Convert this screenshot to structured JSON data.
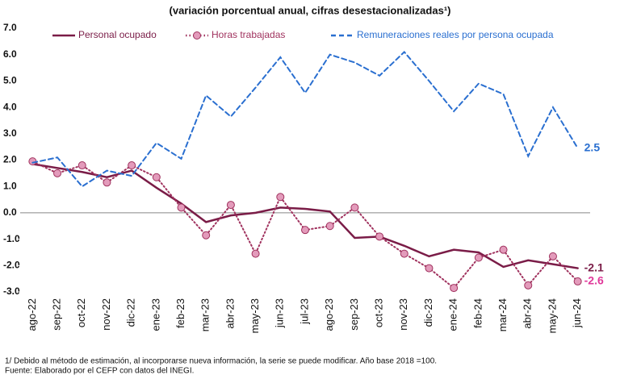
{
  "chart_data": {
    "type": "line",
    "subtitle": "(variación porcentual anual, cifras desestacionalizadas¹)",
    "categories": [
      "ago-22",
      "sep-22",
      "oct-22",
      "nov-22",
      "dic-22",
      "ene-23",
      "feb-23",
      "mar-23",
      "abr-23",
      "may-23",
      "jun-23",
      "jul-23",
      "ago-23",
      "sep-23",
      "oct-23",
      "nov-23",
      "dic-23",
      "ene-24",
      "feb-24",
      "mar-24",
      "abr-24",
      "may-24",
      "jun-24"
    ],
    "series": [
      {
        "name": "Personal ocupado",
        "color": "#7a1c47",
        "style": "solid",
        "values": [
          1.85,
          1.7,
          1.55,
          1.35,
          1.6,
          0.95,
          0.35,
          -0.35,
          -0.1,
          0.0,
          0.2,
          0.15,
          0.05,
          -0.95,
          -0.9,
          -1.25,
          -1.65,
          -1.4,
          -1.5,
          -2.05,
          -1.8,
          -1.95,
          -2.1
        ],
        "value_labels": [
          null,
          null,
          null,
          null,
          null,
          null,
          null,
          null,
          null,
          null,
          null,
          null,
          null,
          null,
          null,
          null,
          null,
          null,
          null,
          null,
          null,
          null,
          "-2.1"
        ]
      },
      {
        "name": "Horas trabajadas",
        "color": "#a0325e",
        "style": "dotted",
        "marker_color": "#e39bbb",
        "label_color": "#e0389a",
        "values": [
          1.95,
          1.5,
          1.8,
          1.15,
          1.8,
          1.35,
          0.2,
          -0.85,
          0.3,
          -1.55,
          0.6,
          -0.65,
          -0.5,
          0.2,
          -0.9,
          -1.55,
          -2.1,
          -2.85,
          -1.7,
          -1.4,
          -2.75,
          -1.65,
          -2.6
        ],
        "value_labels": [
          null,
          null,
          null,
          null,
          null,
          null,
          null,
          null,
          null,
          null,
          null,
          null,
          null,
          null,
          null,
          null,
          null,
          null,
          null,
          null,
          null,
          null,
          "-2.6"
        ]
      },
      {
        "name": "Remuneraciones reales por persona ocupada",
        "color": "#2a6fd0",
        "style": "dashed",
        "values": [
          1.9,
          2.1,
          1.0,
          1.6,
          1.4,
          2.65,
          2.05,
          4.45,
          3.65,
          4.75,
          5.9,
          4.55,
          6.0,
          5.7,
          5.2,
          6.1,
          5.0,
          3.85,
          4.9,
          4.5,
          2.15,
          4.0,
          2.45
        ],
        "value_labels": [
          null,
          null,
          null,
          null,
          null,
          null,
          null,
          null,
          null,
          null,
          null,
          null,
          null,
          null,
          null,
          null,
          null,
          null,
          null,
          null,
          null,
          null,
          "2.5"
        ]
      }
    ],
    "ylim": [
      -3,
      7
    ],
    "yticks": [
      {
        "value": -3,
        "label": "-3.0"
      },
      {
        "value": -2,
        "label": "-2.0"
      },
      {
        "value": -1,
        "label": "-1.0"
      },
      {
        "value": 0,
        "label": "0.0"
      },
      {
        "value": 1,
        "label": "1.0"
      },
      {
        "value": 2,
        "label": "2.0"
      },
      {
        "value": 3,
        "label": "3.0"
      },
      {
        "value": 4,
        "label": "4.0"
      },
      {
        "value": 5,
        "label": "5.0"
      },
      {
        "value": 6,
        "label": "6.0"
      },
      {
        "value": 7,
        "label": "7.0"
      }
    ],
    "footnotes": [
      "1/ Debido al método de estimación, al incorporarse nueva información, la serie se puede modificar. Año base 2018 =100.",
      "Fuente: Elaborado por el CEFP con datos del INEGI."
    ]
  }
}
